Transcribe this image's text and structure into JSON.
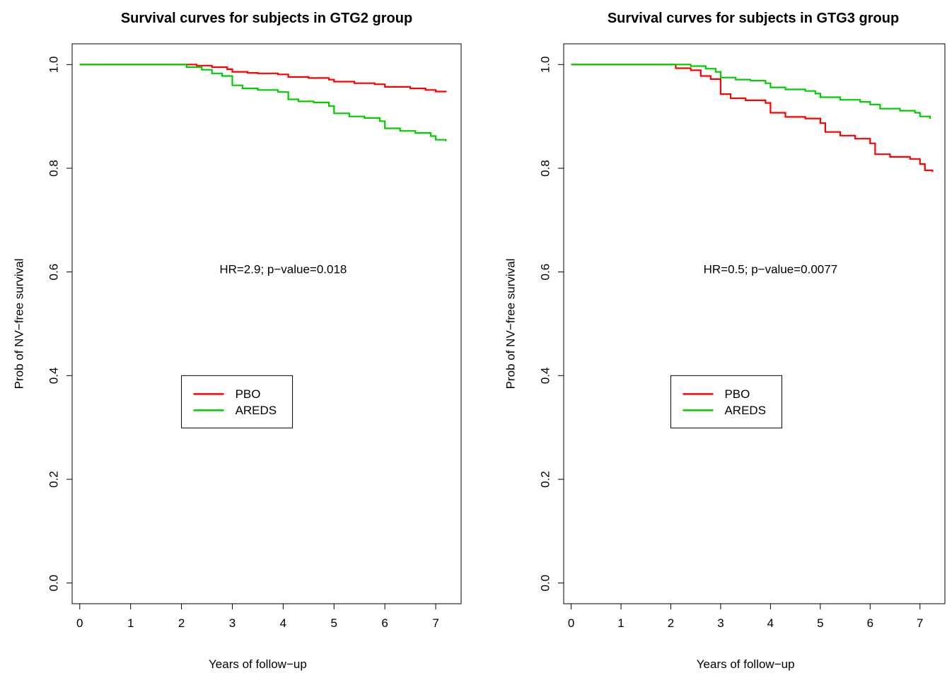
{
  "chart_data": [
    {
      "type": "line",
      "title": "Survival curves for subjects in GTG2 group",
      "xlabel": "Years of follow−up",
      "ylabel": "Prob of NV−free survival",
      "xlim": [
        -0.15,
        7.5
      ],
      "ylim": [
        -0.04,
        1.04
      ],
      "xticks": [
        0,
        1,
        2,
        3,
        4,
        5,
        6,
        7
      ],
      "xtick_labels": [
        "0",
        "1",
        "2",
        "3",
        "4",
        "5",
        "6",
        "7"
      ],
      "yticks": [
        0.0,
        0.2,
        0.4,
        0.6,
        0.8,
        1.0
      ],
      "ytick_labels": [
        "0.0",
        "0.2",
        "0.4",
        "0.6",
        "0.8",
        "1.0"
      ],
      "annotation": "HR=2.9; p−value=0.018",
      "annotation_pos": [
        4.0,
        0.605
      ],
      "legend": {
        "x": 2.0,
        "y": 0.4,
        "placement": "center-left"
      },
      "grid": false,
      "series": [
        {
          "name": "PBO",
          "color": "#ff0000",
          "points": [
            [
              0,
              1.0
            ],
            [
              2.1,
              1.0
            ],
            [
              2.3,
              0.998
            ],
            [
              2.6,
              0.995
            ],
            [
              2.9,
              0.991
            ],
            [
              3.0,
              0.986
            ],
            [
              3.3,
              0.984
            ],
            [
              3.5,
              0.983
            ],
            [
              3.9,
              0.981
            ],
            [
              4.1,
              0.976
            ],
            [
              4.5,
              0.974
            ],
            [
              4.9,
              0.971
            ],
            [
              5.0,
              0.967
            ],
            [
              5.4,
              0.964
            ],
            [
              5.8,
              0.962
            ],
            [
              6.0,
              0.957
            ],
            [
              6.5,
              0.954
            ],
            [
              6.8,
              0.951
            ],
            [
              7.0,
              0.948
            ],
            [
              7.2,
              0.947
            ]
          ]
        },
        {
          "name": "AREDS",
          "color": "#00cd00",
          "points": [
            [
              0,
              1.0
            ],
            [
              2.1,
              1.0
            ],
            [
              2.1,
              0.995
            ],
            [
              2.4,
              0.99
            ],
            [
              2.6,
              0.983
            ],
            [
              2.8,
              0.978
            ],
            [
              3.0,
              0.96
            ],
            [
              3.2,
              0.954
            ],
            [
              3.5,
              0.951
            ],
            [
              3.9,
              0.947
            ],
            [
              4.1,
              0.933
            ],
            [
              4.3,
              0.929
            ],
            [
              4.6,
              0.927
            ],
            [
              4.9,
              0.92
            ],
            [
              5.0,
              0.906
            ],
            [
              5.3,
              0.9
            ],
            [
              5.6,
              0.897
            ],
            [
              5.9,
              0.891
            ],
            [
              6.0,
              0.877
            ],
            [
              6.3,
              0.872
            ],
            [
              6.6,
              0.868
            ],
            [
              6.9,
              0.862
            ],
            [
              7.0,
              0.855
            ],
            [
              7.2,
              0.852
            ]
          ]
        }
      ]
    },
    {
      "type": "line",
      "title": "Survival curves for subjects in GTG3 group",
      "xlabel": "Years of follow−up",
      "ylabel": "Prob of NV−free survival",
      "xlim": [
        -0.15,
        7.5
      ],
      "ylim": [
        -0.04,
        1.04
      ],
      "xticks": [
        0,
        1,
        2,
        3,
        4,
        5,
        6,
        7
      ],
      "xtick_labels": [
        "0",
        "1",
        "2",
        "3",
        "4",
        "5",
        "6",
        "7"
      ],
      "yticks": [
        0.0,
        0.2,
        0.4,
        0.6,
        0.8,
        1.0
      ],
      "ytick_labels": [
        "0.0",
        "0.2",
        "0.4",
        "0.6",
        "0.8",
        "1.0"
      ],
      "annotation": "HR=0.5; p−value=0.0077",
      "annotation_pos": [
        4.0,
        0.605
      ],
      "legend": {
        "x": 2.0,
        "y": 0.4,
        "placement": "center-left"
      },
      "grid": false,
      "series": [
        {
          "name": "PBO",
          "color": "#ff0000",
          "points": [
            [
              0,
              1.0
            ],
            [
              2.1,
              1.0
            ],
            [
              2.1,
              0.993
            ],
            [
              2.4,
              0.989
            ],
            [
              2.6,
              0.978
            ],
            [
              2.8,
              0.972
            ],
            [
              3.0,
              0.943
            ],
            [
              3.2,
              0.935
            ],
            [
              3.5,
              0.931
            ],
            [
              3.9,
              0.926
            ],
            [
              4.0,
              0.907
            ],
            [
              4.3,
              0.899
            ],
            [
              4.7,
              0.896
            ],
            [
              5.0,
              0.887
            ],
            [
              5.1,
              0.87
            ],
            [
              5.4,
              0.863
            ],
            [
              5.7,
              0.857
            ],
            [
              6.0,
              0.848
            ],
            [
              6.1,
              0.827
            ],
            [
              6.4,
              0.822
            ],
            [
              6.8,
              0.818
            ],
            [
              7.0,
              0.808
            ],
            [
              7.1,
              0.796
            ],
            [
              7.25,
              0.793
            ]
          ]
        },
        {
          "name": "AREDS",
          "color": "#00cd00",
          "points": [
            [
              0,
              1.0
            ],
            [
              2.1,
              1.0
            ],
            [
              2.4,
              0.997
            ],
            [
              2.7,
              0.992
            ],
            [
              2.9,
              0.986
            ],
            [
              3.0,
              0.975
            ],
            [
              3.3,
              0.971
            ],
            [
              3.6,
              0.969
            ],
            [
              3.9,
              0.964
            ],
            [
              4.0,
              0.956
            ],
            [
              4.3,
              0.952
            ],
            [
              4.7,
              0.949
            ],
            [
              4.9,
              0.944
            ],
            [
              5.0,
              0.937
            ],
            [
              5.4,
              0.932
            ],
            [
              5.8,
              0.928
            ],
            [
              6.0,
              0.923
            ],
            [
              6.2,
              0.915
            ],
            [
              6.6,
              0.911
            ],
            [
              6.9,
              0.907
            ],
            [
              7.0,
              0.9
            ],
            [
              7.2,
              0.895
            ]
          ]
        }
      ]
    }
  ]
}
